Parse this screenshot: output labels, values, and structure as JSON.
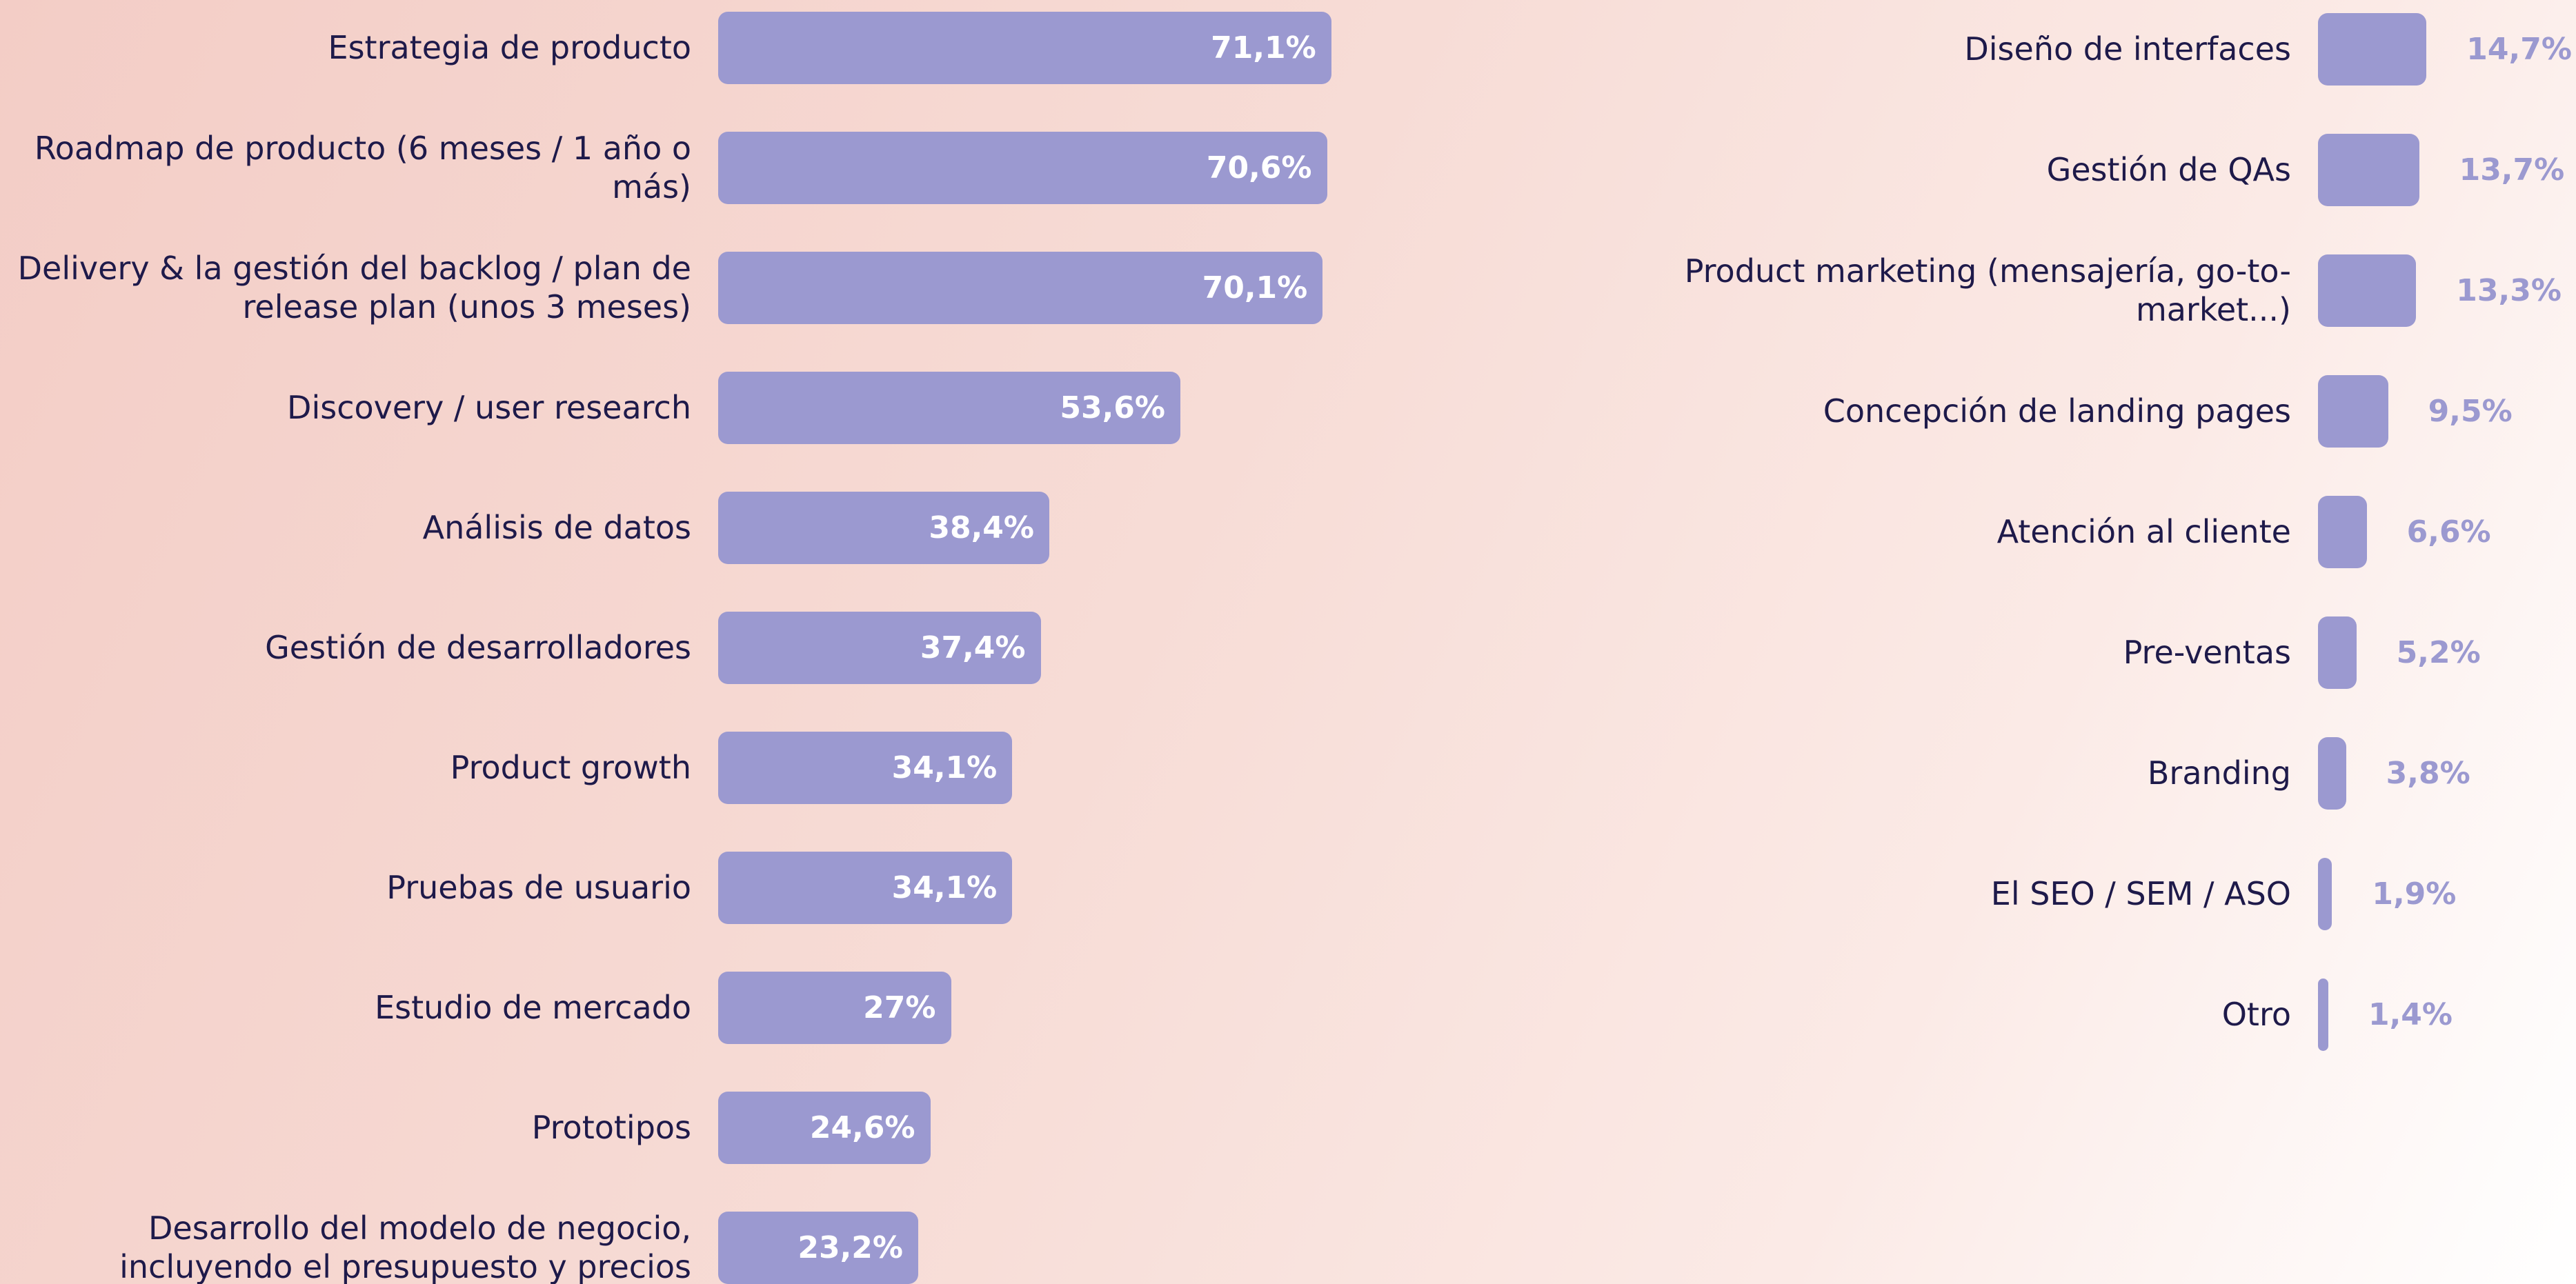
{
  "chart_data": [
    {
      "type": "bar",
      "orientation": "horizontal",
      "color": "#9b99d0",
      "xlim": [
        0,
        100
      ],
      "label_position": "inside",
      "value_label_color": "#ffffff",
      "categories": [
        "Estrategia de producto",
        "Roadmap de producto (6 meses / 1 año o más)",
        "Delivery & la gestión del backlog / plan de release plan (unos 3 meses)",
        "Discovery / user research",
        "Análisis de datos",
        "Gestión de desarrolladores",
        "Product growth",
        "Pruebas de usuario",
        "Estudio de mercado",
        "Prototipos",
        "Desarrollo del modelo de negocio, incluyendo el presupuesto y precios"
      ],
      "values": [
        71.1,
        70.6,
        70.1,
        53.6,
        38.4,
        37.4,
        34.1,
        34.1,
        27,
        24.6,
        23.2
      ],
      "value_labels": [
        "71,1%",
        "70,6%",
        "70,1%",
        "53,6%",
        "38,4%",
        "37,4%",
        "34,1%",
        "34,1%",
        "27%",
        "24,6%",
        "23,2%"
      ]
    },
    {
      "type": "bar",
      "orientation": "horizontal",
      "color": "#9b99d0",
      "xlim": [
        0,
        100
      ],
      "label_position": "outside",
      "value_label_color": "#9b99d0",
      "categories": [
        "Diseño de interfaces",
        "Gestión de QAs",
        "Product marketing (mensajería, go-to-market...)",
        "Concepción de landing pages",
        "Atención al cliente",
        "Pre-ventas",
        "Branding",
        "El SEO / SEM / ASO",
        "Otro"
      ],
      "values": [
        14.7,
        13.7,
        13.3,
        9.5,
        6.6,
        5.2,
        3.8,
        1.9,
        1.4
      ],
      "value_labels": [
        "14,7%",
        "13,7%",
        "13,3%",
        "9,5%",
        "6,6%",
        "5,2%",
        "3,8%",
        "1,9%",
        "1,4%"
      ]
    }
  ]
}
